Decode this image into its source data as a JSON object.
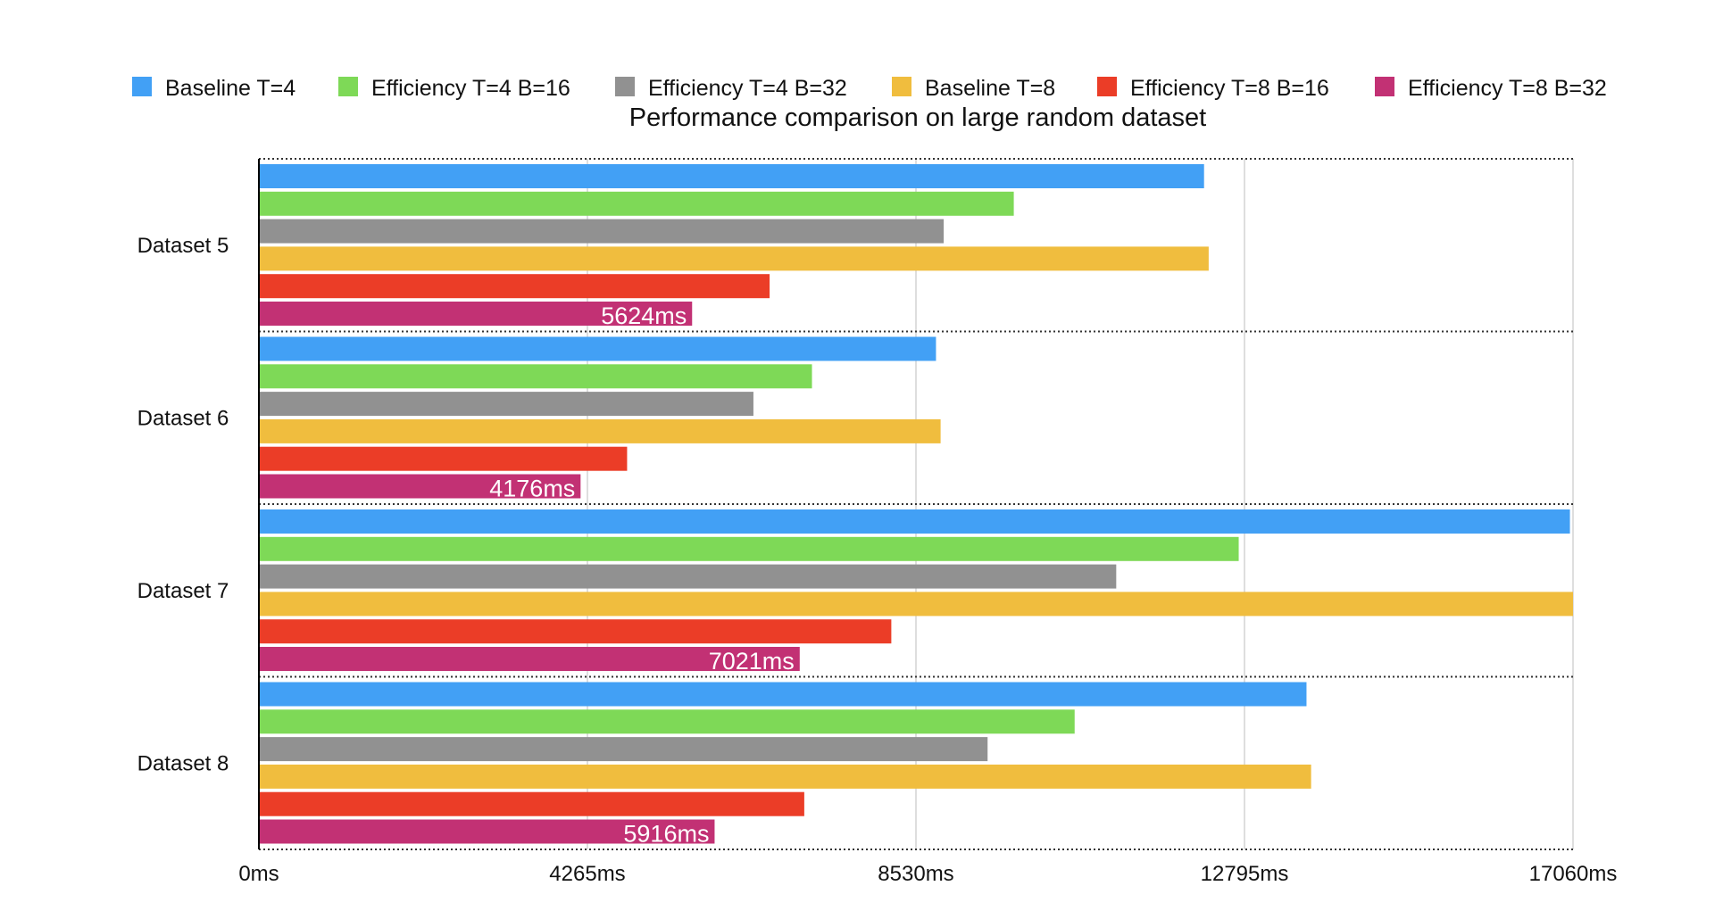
{
  "chart_data": {
    "type": "bar",
    "orientation": "horizontal",
    "title": "Performance comparison on large random dataset",
    "legend_position": "top",
    "categories": [
      "Dataset 5",
      "Dataset 6",
      "Dataset 7",
      "Dataset 8"
    ],
    "x_ticks": [
      "0ms",
      "4265ms",
      "8530ms",
      "12795ms",
      "17060ms"
    ],
    "xlim": [
      0,
      17060
    ],
    "grid": true,
    "series": [
      {
        "name": "Baseline T=4",
        "color": "#42a0f5",
        "values": [
          12270,
          8790,
          17020,
          13600
        ]
      },
      {
        "name": "Efficiency T=4 B=16",
        "color": "#7ed957",
        "values": [
          9800,
          7180,
          12720,
          10590
        ]
      },
      {
        "name": "Efficiency T=4 B=32",
        "color": "#919191",
        "values": [
          8890,
          6420,
          11130,
          9460
        ]
      },
      {
        "name": "Baseline T=8",
        "color": "#f0bd3e",
        "values": [
          12330,
          8850,
          17060,
          13660
        ]
      },
      {
        "name": "Efficiency T=8 B=16",
        "color": "#eb3d27",
        "values": [
          6630,
          4780,
          8210,
          7080
        ]
      },
      {
        "name": "Efficiency T=8 B=32",
        "color": "#c23174",
        "values": [
          5624,
          4176,
          7021,
          5916
        ],
        "labels": [
          "5624ms",
          "4176ms",
          "7021ms",
          "5916ms"
        ]
      }
    ]
  }
}
